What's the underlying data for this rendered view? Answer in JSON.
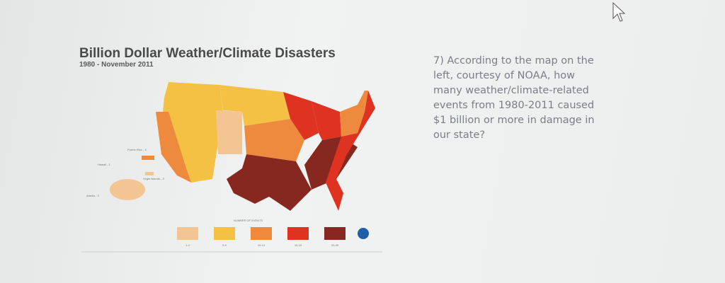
{
  "figure": {
    "title": "Billion Dollar Weather/Climate Disasters",
    "subtitle": "1980 - November 2011",
    "territories": [
      "Puerto Rico - 4",
      "Hawaii - 1",
      "Virgin Islands - 3",
      "Alaska - 3"
    ],
    "legend": {
      "title": "NUMBER OF EVENTS",
      "items": [
        {
          "label": "1-4",
          "color": "#f3c592"
        },
        {
          "label": "5-9",
          "color": "#f4c144"
        },
        {
          "label": "10-14",
          "color": "#ee8a3e"
        },
        {
          "label": "15-19",
          "color": "#dd3320"
        },
        {
          "label": "20-40",
          "color": "#86281f"
        }
      ]
    }
  },
  "question": {
    "lines": [
      "7) According to the map on the",
      "left, courtesy of NOAA, how",
      "many weather/climate-related",
      "events from 1980-2011 caused",
      "$1 billion or more in damage in",
      "our state?"
    ]
  }
}
